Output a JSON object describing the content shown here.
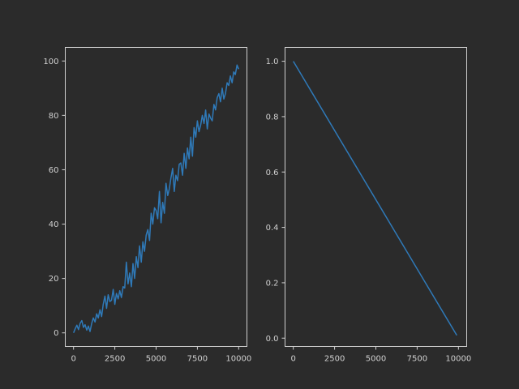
{
  "figure": {
    "background": "#2b2b2b",
    "axis_color": "#d0d0d0",
    "line_color": "#2f7ab9"
  },
  "chart_data": [
    {
      "type": "line",
      "title": "",
      "xlabel": "",
      "ylabel": "",
      "xlim": [
        -500,
        10500
      ],
      "ylim": [
        -5,
        105
      ],
      "xticks": [
        0,
        2500,
        5000,
        7500,
        10000
      ],
      "yticks": [
        0,
        20,
        40,
        60,
        80,
        100
      ],
      "tick_labels_x": [
        "0",
        "2500",
        "5000",
        "7500",
        "10000"
      ],
      "tick_labels_y": [
        "0",
        "20",
        "40",
        "60",
        "80",
        "100"
      ],
      "series": [
        {
          "color": "#2f7ab9",
          "x": [
            0,
            100,
            200,
            300,
            400,
            500,
            600,
            700,
            800,
            900,
            1000,
            1100,
            1200,
            1300,
            1400,
            1500,
            1600,
            1700,
            1800,
            1900,
            2000,
            2100,
            2200,
            2300,
            2400,
            2500,
            2600,
            2700,
            2800,
            2900,
            3000,
            3100,
            3200,
            3300,
            3400,
            3500,
            3600,
            3700,
            3800,
            3900,
            4000,
            4100,
            4200,
            4300,
            4400,
            4500,
            4600,
            4700,
            4800,
            4900,
            5000,
            5100,
            5200,
            5300,
            5400,
            5500,
            5600,
            5700,
            5800,
            5900,
            6000,
            6100,
            6200,
            6300,
            6400,
            6500,
            6600,
            6700,
            6800,
            6900,
            7000,
            7100,
            7200,
            7300,
            7400,
            7500,
            7600,
            7700,
            7800,
            7900,
            8000,
            8100,
            8200,
            8300,
            8400,
            8500,
            8600,
            8700,
            8800,
            8900,
            9000,
            9100,
            9200,
            9300,
            9400,
            9500,
            9600,
            9700,
            9800,
            9900,
            10000
          ],
          "y": [
            0,
            1.5,
            2.8,
            1.2,
            3.5,
            4.5,
            2.0,
            3.0,
            1.0,
            2.5,
            0.5,
            3.5,
            5.5,
            4.0,
            7.0,
            5.5,
            8.5,
            6.0,
            10.5,
            13.5,
            9.0,
            14.0,
            11.5,
            12.0,
            16.0,
            10.5,
            14.5,
            12.5,
            15.5,
            13.0,
            17.0,
            16.5,
            26.0,
            18.0,
            22.0,
            17.0,
            25.5,
            20.0,
            28.0,
            24.0,
            32.0,
            26.0,
            33.5,
            30.0,
            36.0,
            38.0,
            34.0,
            44.0,
            40.0,
            46.0,
            45.0,
            42.0,
            52.0,
            40.5,
            48.0,
            44.0,
            55.0,
            50.5,
            53.0,
            57.0,
            60.5,
            52.0,
            58.0,
            56.0,
            62.0,
            62.5,
            58.0,
            66.0,
            60.5,
            68.0,
            64.0,
            72.0,
            65.0,
            75.5,
            72.0,
            78.0,
            74.0,
            76.5,
            80.0,
            77.0,
            82.0,
            75.0,
            80.5,
            79.0,
            78.0,
            84.0,
            82.0,
            86.5,
            88.0,
            85.0,
            90.0,
            86.0,
            88.0,
            92.0,
            91.0,
            94.5,
            92.0,
            96.0,
            95.0,
            98.5,
            97.0
          ]
        }
      ]
    },
    {
      "type": "line",
      "title": "",
      "xlabel": "",
      "ylabel": "",
      "xlim": [
        -500,
        10500
      ],
      "ylim": [
        -0.03,
        1.05
      ],
      "xticks": [
        0,
        2500,
        5000,
        7500,
        10000
      ],
      "yticks": [
        0,
        0.2,
        0.4,
        0.6,
        0.8,
        1.0
      ],
      "tick_labels_x": [
        "0",
        "2500",
        "5000",
        "7500",
        "10000"
      ],
      "tick_labels_y": [
        "0.0",
        "0.2",
        "0.4",
        "0.6",
        "0.8",
        "1.0"
      ],
      "series": [
        {
          "color": "#2f7ab9",
          "x": [
            0,
            9900
          ],
          "y": [
            1.0,
            0.01
          ]
        }
      ]
    }
  ]
}
